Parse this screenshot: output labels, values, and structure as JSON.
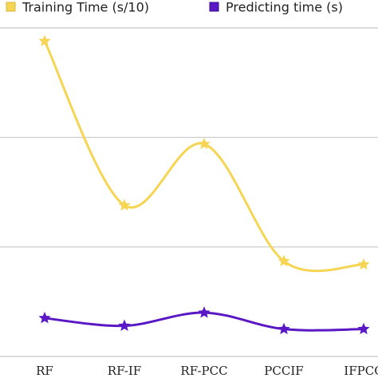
{
  "chart_data": {
    "type": "line",
    "categories": [
      "RF",
      "RF-IF",
      "RF-PCC",
      "PCCIF",
      "IFPCC"
    ],
    "series": [
      {
        "name": "Training Time (s/10)",
        "color": "#f5d553",
        "values": [
          2.88,
          1.38,
          1.94,
          0.87,
          0.84
        ]
      },
      {
        "name": "Predicting time (s)",
        "color": "#5a17c4",
        "values": [
          0.35,
          0.28,
          0.4,
          0.25,
          0.25
        ]
      }
    ],
    "ylim": [
      0,
      3
    ],
    "yticks": [
      0,
      1,
      2,
      3
    ],
    "grid": true,
    "smooth": true,
    "marker": "star",
    "legend": "top"
  }
}
